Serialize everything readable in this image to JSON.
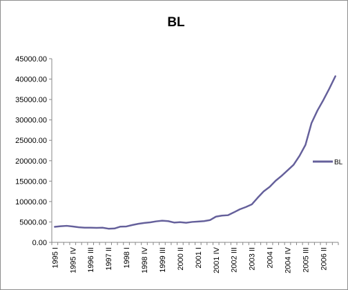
{
  "chart_data": {
    "type": "line",
    "title": "BL",
    "xlabel": "",
    "ylabel": "",
    "ylim": [
      0,
      45000
    ],
    "yticks": [
      "0.00",
      "5000.00",
      "10000.00",
      "15000.00",
      "20000.00",
      "25000.00",
      "30000.00",
      "35000.00",
      "40000.00",
      "45000.00"
    ],
    "grid": false,
    "legend_position": "right",
    "series": [
      {
        "name": "BL",
        "color": "#65609b",
        "values": [
          3800,
          3950,
          4050,
          3900,
          3700,
          3600,
          3600,
          3550,
          3600,
          3350,
          3400,
          3850,
          3900,
          4250,
          4550,
          4750,
          4900,
          5150,
          5300,
          5200,
          4850,
          4950,
          4800,
          5000,
          5100,
          5200,
          5450,
          6300,
          6550,
          6650,
          7350,
          8100,
          8650,
          9300,
          10950,
          12500,
          13600,
          15100,
          16300,
          17650,
          19000,
          21200,
          23900,
          29200,
          32300,
          34900,
          37700,
          40700
        ]
      }
    ],
    "x": [
      "1995 I",
      "1995 II",
      "1995 III",
      "1995 IV",
      "1996 I",
      "1996 II",
      "1996 III",
      "1996 IV",
      "1997 I",
      "1997 II",
      "1997 III",
      "1997 IV",
      "1998 I",
      "1998 II",
      "1998 III",
      "1998 IV",
      "1999 I",
      "1999 II",
      "1999 III",
      "1999 IV",
      "2000 I",
      "2000 II",
      "2000 III",
      "2000 IV",
      "2001 I",
      "2001 II",
      "2001 III",
      "2001 IV",
      "2002 I",
      "2002 II",
      "2002 III",
      "2002 IV",
      "2003 I",
      "2003 II",
      "2003 III",
      "2003 IV",
      "2004 I",
      "2004 II",
      "2004 III",
      "2004 IV",
      "2005 I",
      "2005 II",
      "2005 III",
      "2005 IV",
      "2006 I",
      "2006 II",
      "2006 III",
      "2006 IV"
    ],
    "x_labels_shown": [
      "1995 I",
      "1995 IV",
      "1996 III",
      "1997 II",
      "1998 I",
      "1998 IV",
      "1999 III",
      "2000 II",
      "2001 I",
      "2001 IV",
      "2002 III",
      "2003 II",
      "2004 I",
      "2004 IV",
      "2005 III",
      "2006 II"
    ]
  }
}
